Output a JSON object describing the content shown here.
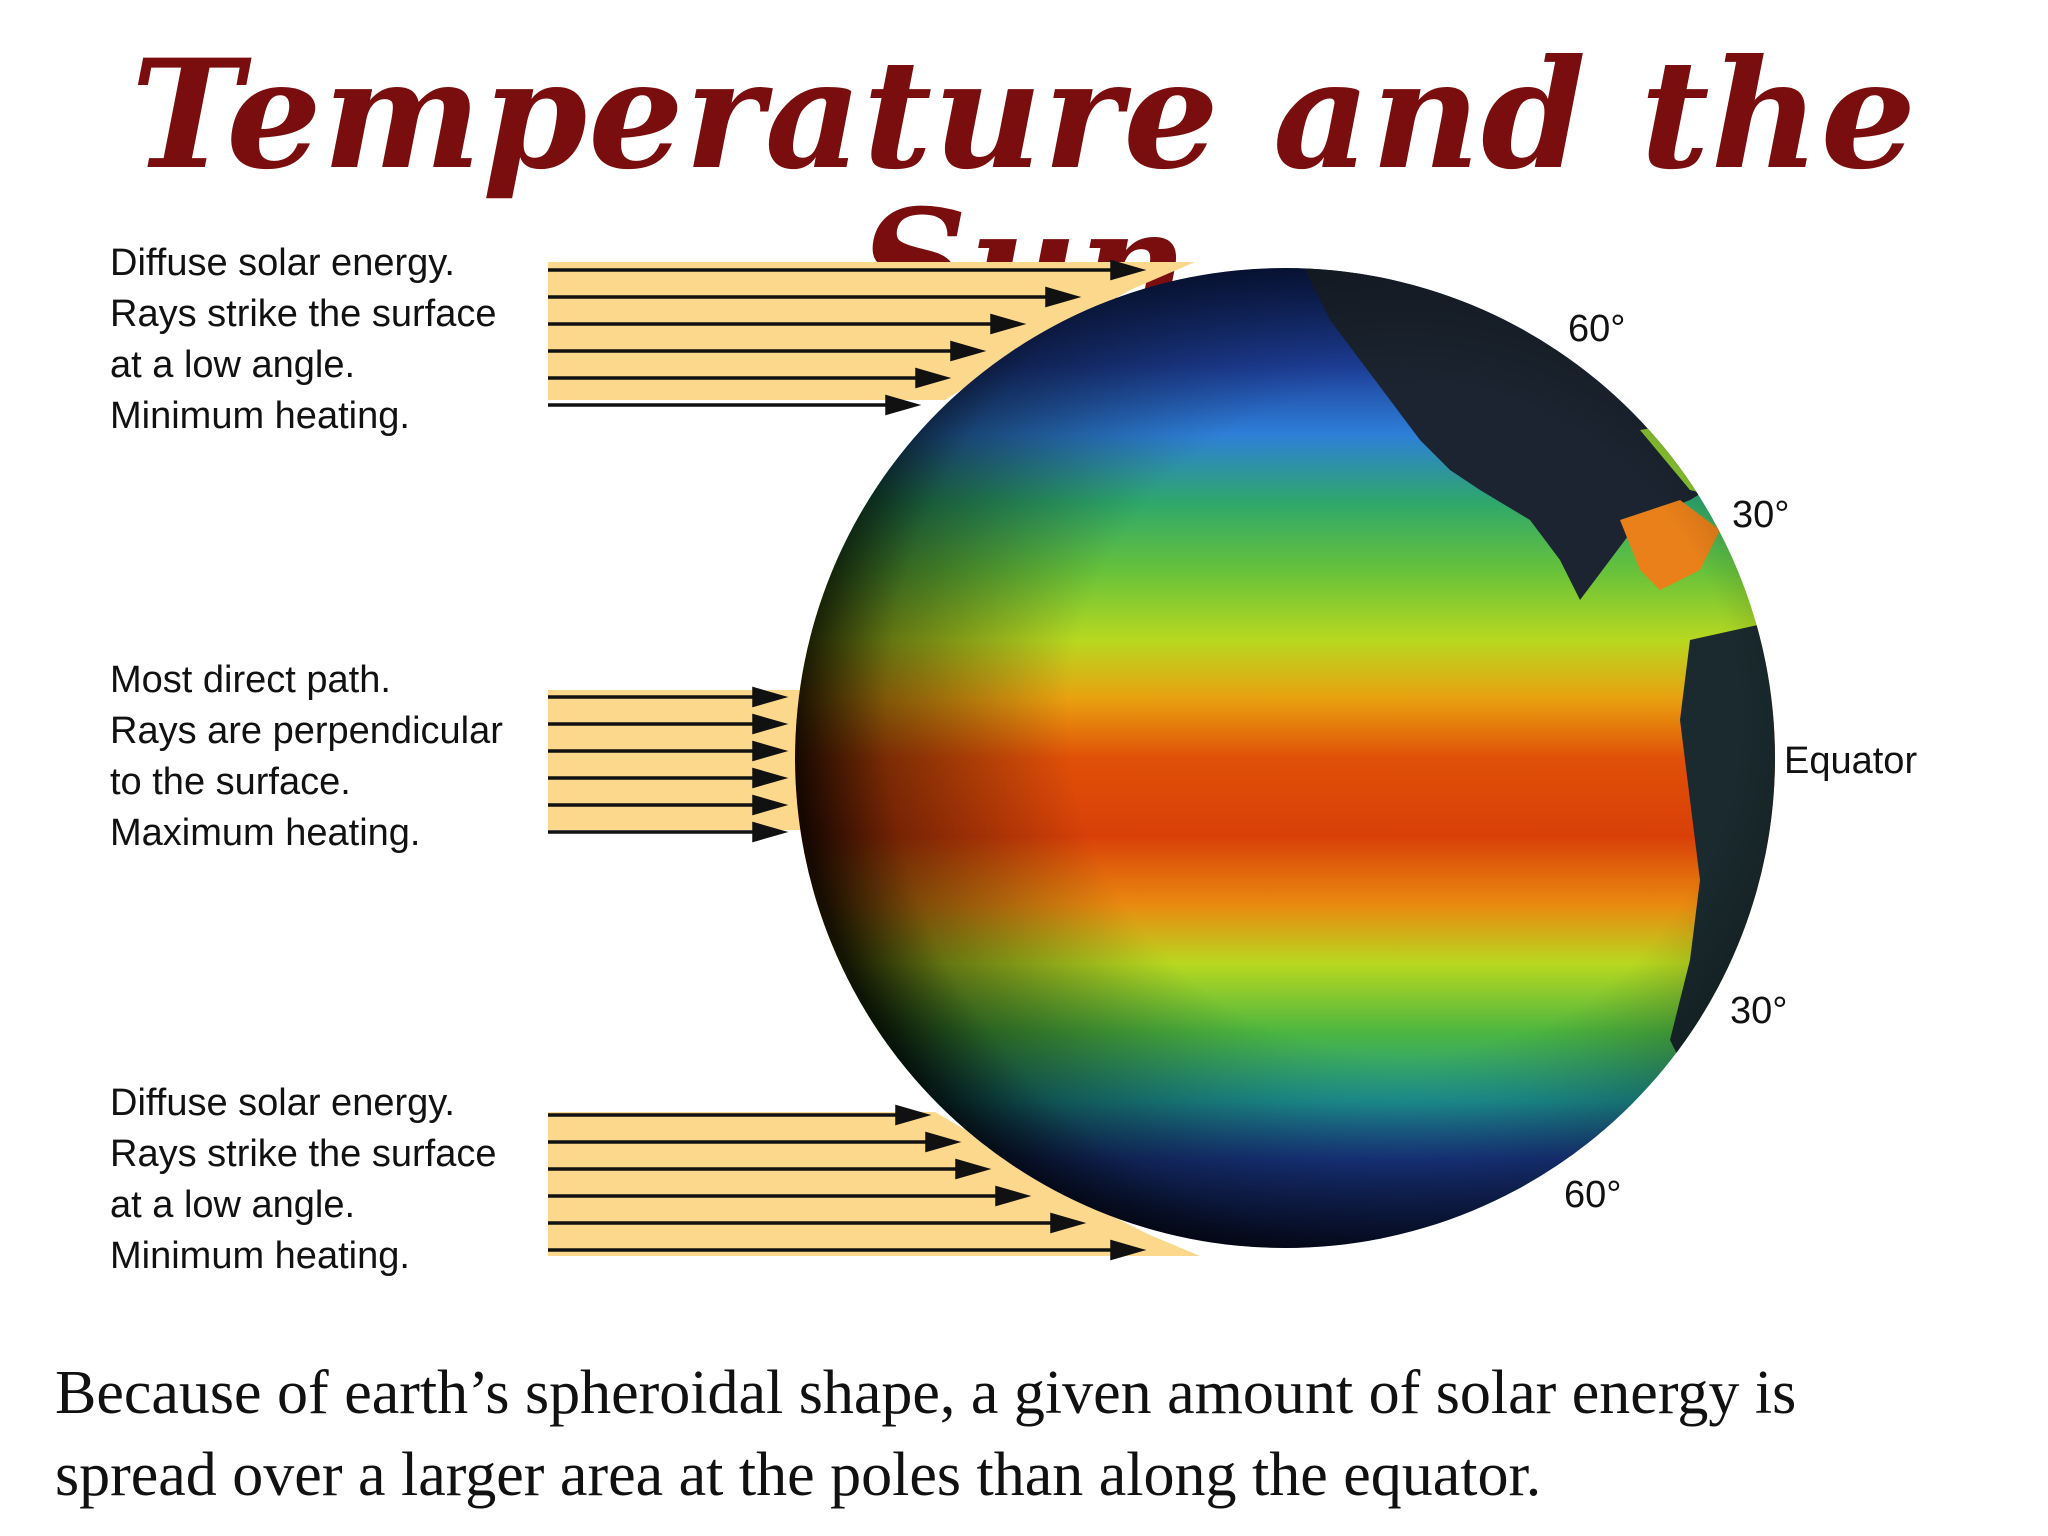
{
  "title": "Temperature and the Sun",
  "ray_groups": {
    "top": {
      "lines": [
        "Diffuse solar energy.",
        "Rays strike the surface",
        "at a low angle.",
        "Minimum heating."
      ]
    },
    "middle": {
      "lines": [
        "Most direct path.",
        "Rays are perpendicular",
        "to the surface.",
        "Maximum heating."
      ]
    },
    "bottom": {
      "lines": [
        "Diffuse solar energy.",
        "Rays strike the surface",
        "at a low angle.",
        "Minimum heating."
      ]
    }
  },
  "latitudes": {
    "north_60": "60°",
    "north_30": "30°",
    "equator": "Equator",
    "south_30": "30°",
    "south_60": "60°"
  },
  "caption": {
    "line1": "Because of earth’s spheroidal shape, a given amount of solar energy is",
    "line2": "spread over a larger area at the poles than along the equator."
  },
  "colors": {
    "title": "#7a0e0e",
    "ray_band": "#fcd88c",
    "arrow": "#111111"
  },
  "icons": {
    "globe": "earth-sea-surface-temperature-globe",
    "arrow": "arrow-right-icon"
  }
}
